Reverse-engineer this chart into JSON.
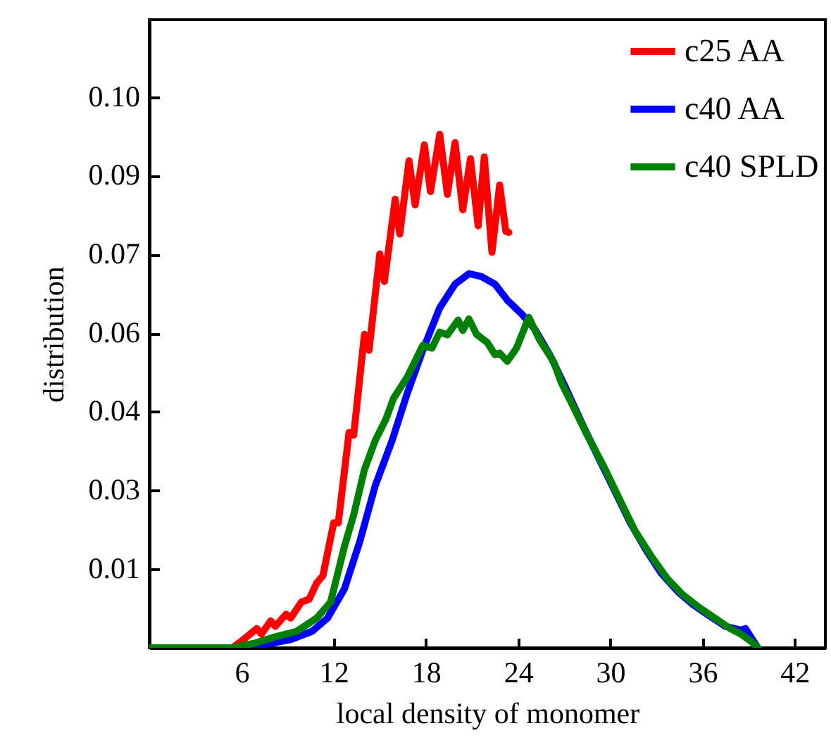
{
  "chart_data": {
    "type": "line",
    "xlabel": "local density of monomer",
    "ylabel": "distribution",
    "xlim": [
      0,
      44
    ],
    "ylim": [
      0,
      0.114
    ],
    "xticks": [
      6,
      12,
      18,
      24,
      30,
      36,
      42
    ],
    "yticks": [
      {
        "value": 0.0143,
        "label": "0.01"
      },
      {
        "value": 0.0286,
        "label": "0.03"
      },
      {
        "value": 0.0429,
        "label": "0.04"
      },
      {
        "value": 0.0571,
        "label": "0.06"
      },
      {
        "value": 0.0714,
        "label": "0.07"
      },
      {
        "value": 0.0857,
        "label": "0.09"
      },
      {
        "value": 0.1,
        "label": "0.10"
      }
    ],
    "legend": "top right",
    "grid": false,
    "marker": "none",
    "line_style": "solid",
    "series": [
      {
        "name": "c25 AA",
        "color": "#ff0000",
        "x": [
          0,
          5.4,
          5.9,
          7.0,
          7.3,
          7.9,
          8.2,
          8.9,
          9.2,
          9.9,
          10.4,
          10.9,
          11.3,
          12.0,
          12.3,
          13.0,
          13.3,
          14.0,
          14.3,
          15.0,
          15.3,
          16.0,
          16.3,
          16.9,
          17.3,
          17.9,
          18.3,
          18.9,
          19.4,
          19.9,
          20.4,
          20.9,
          21.4,
          21.8,
          22.3,
          22.8,
          23.2,
          23.4
        ],
        "values": [
          0,
          0,
          0.001,
          0.0035,
          0.0025,
          0.0049,
          0.0039,
          0.0061,
          0.0054,
          0.0083,
          0.0088,
          0.0118,
          0.0131,
          0.0227,
          0.0227,
          0.0391,
          0.0386,
          0.0569,
          0.054,
          0.0715,
          0.0665,
          0.0814,
          0.0751,
          0.0884,
          0.0804,
          0.0913,
          0.0828,
          0.0932,
          0.0823,
          0.0917,
          0.0795,
          0.0888,
          0.0766,
          0.0891,
          0.0718,
          0.084,
          0.0756,
          0.0754
        ]
      },
      {
        "name": "c40 AA",
        "color": "#0000ff",
        "x": [
          0,
          5.8,
          7.5,
          9.2,
          10.6,
          11.6,
          12.7,
          13.7,
          14.7,
          15.8,
          16.8,
          17.8,
          18.9,
          19.9,
          20.8,
          21.6,
          22.5,
          23.3,
          24.2,
          25.1,
          26.1,
          27.1,
          28.2,
          29.2,
          30.2,
          31.3,
          32.3,
          33.3,
          34.4,
          35.4,
          36.4,
          37.5,
          38.5,
          38.8,
          39.6
        ],
        "values": [
          0,
          0,
          0.0006,
          0.0015,
          0.003,
          0.0054,
          0.0107,
          0.0193,
          0.0294,
          0.0376,
          0.0463,
          0.054,
          0.0617,
          0.066,
          0.0679,
          0.0674,
          0.066,
          0.0631,
          0.0607,
          0.0578,
          0.053,
          0.0472,
          0.0405,
          0.0347,
          0.029,
          0.0227,
          0.0179,
          0.0136,
          0.0102,
          0.0078,
          0.0059,
          0.0039,
          0.0032,
          0.0035,
          0
        ]
      },
      {
        "name": "c40 SPLD",
        "color": "#008000",
        "x": [
          0,
          5.4,
          6.8,
          8.2,
          9.6,
          10.9,
          11.8,
          12.7,
          13.3,
          14.0,
          14.7,
          15.4,
          15.9,
          16.8,
          17.8,
          18.4,
          18.9,
          19.4,
          20.1,
          20.4,
          20.8,
          21.3,
          22.0,
          22.5,
          22.8,
          23.3,
          23.9,
          24.7,
          25.4,
          26.3,
          26.8,
          27.5,
          28.5,
          29.6,
          30.6,
          31.6,
          32.7,
          33.7,
          34.7,
          35.8,
          36.8,
          37.8,
          38.5,
          39.2,
          39.6
        ],
        "values": [
          0,
          0,
          0.0008,
          0.002,
          0.003,
          0.0054,
          0.0083,
          0.0184,
          0.0241,
          0.0323,
          0.0376,
          0.0415,
          0.0453,
          0.0492,
          0.0549,
          0.0544,
          0.0573,
          0.0568,
          0.0595,
          0.0576,
          0.0597,
          0.0569,
          0.0554,
          0.0532,
          0.0535,
          0.052,
          0.0544,
          0.06,
          0.0559,
          0.052,
          0.0482,
          0.0443,
          0.0386,
          0.0328,
          0.027,
          0.0213,
          0.0165,
          0.0126,
          0.0097,
          0.0073,
          0.0054,
          0.0035,
          0.0025,
          0.0011,
          0
        ]
      }
    ]
  }
}
